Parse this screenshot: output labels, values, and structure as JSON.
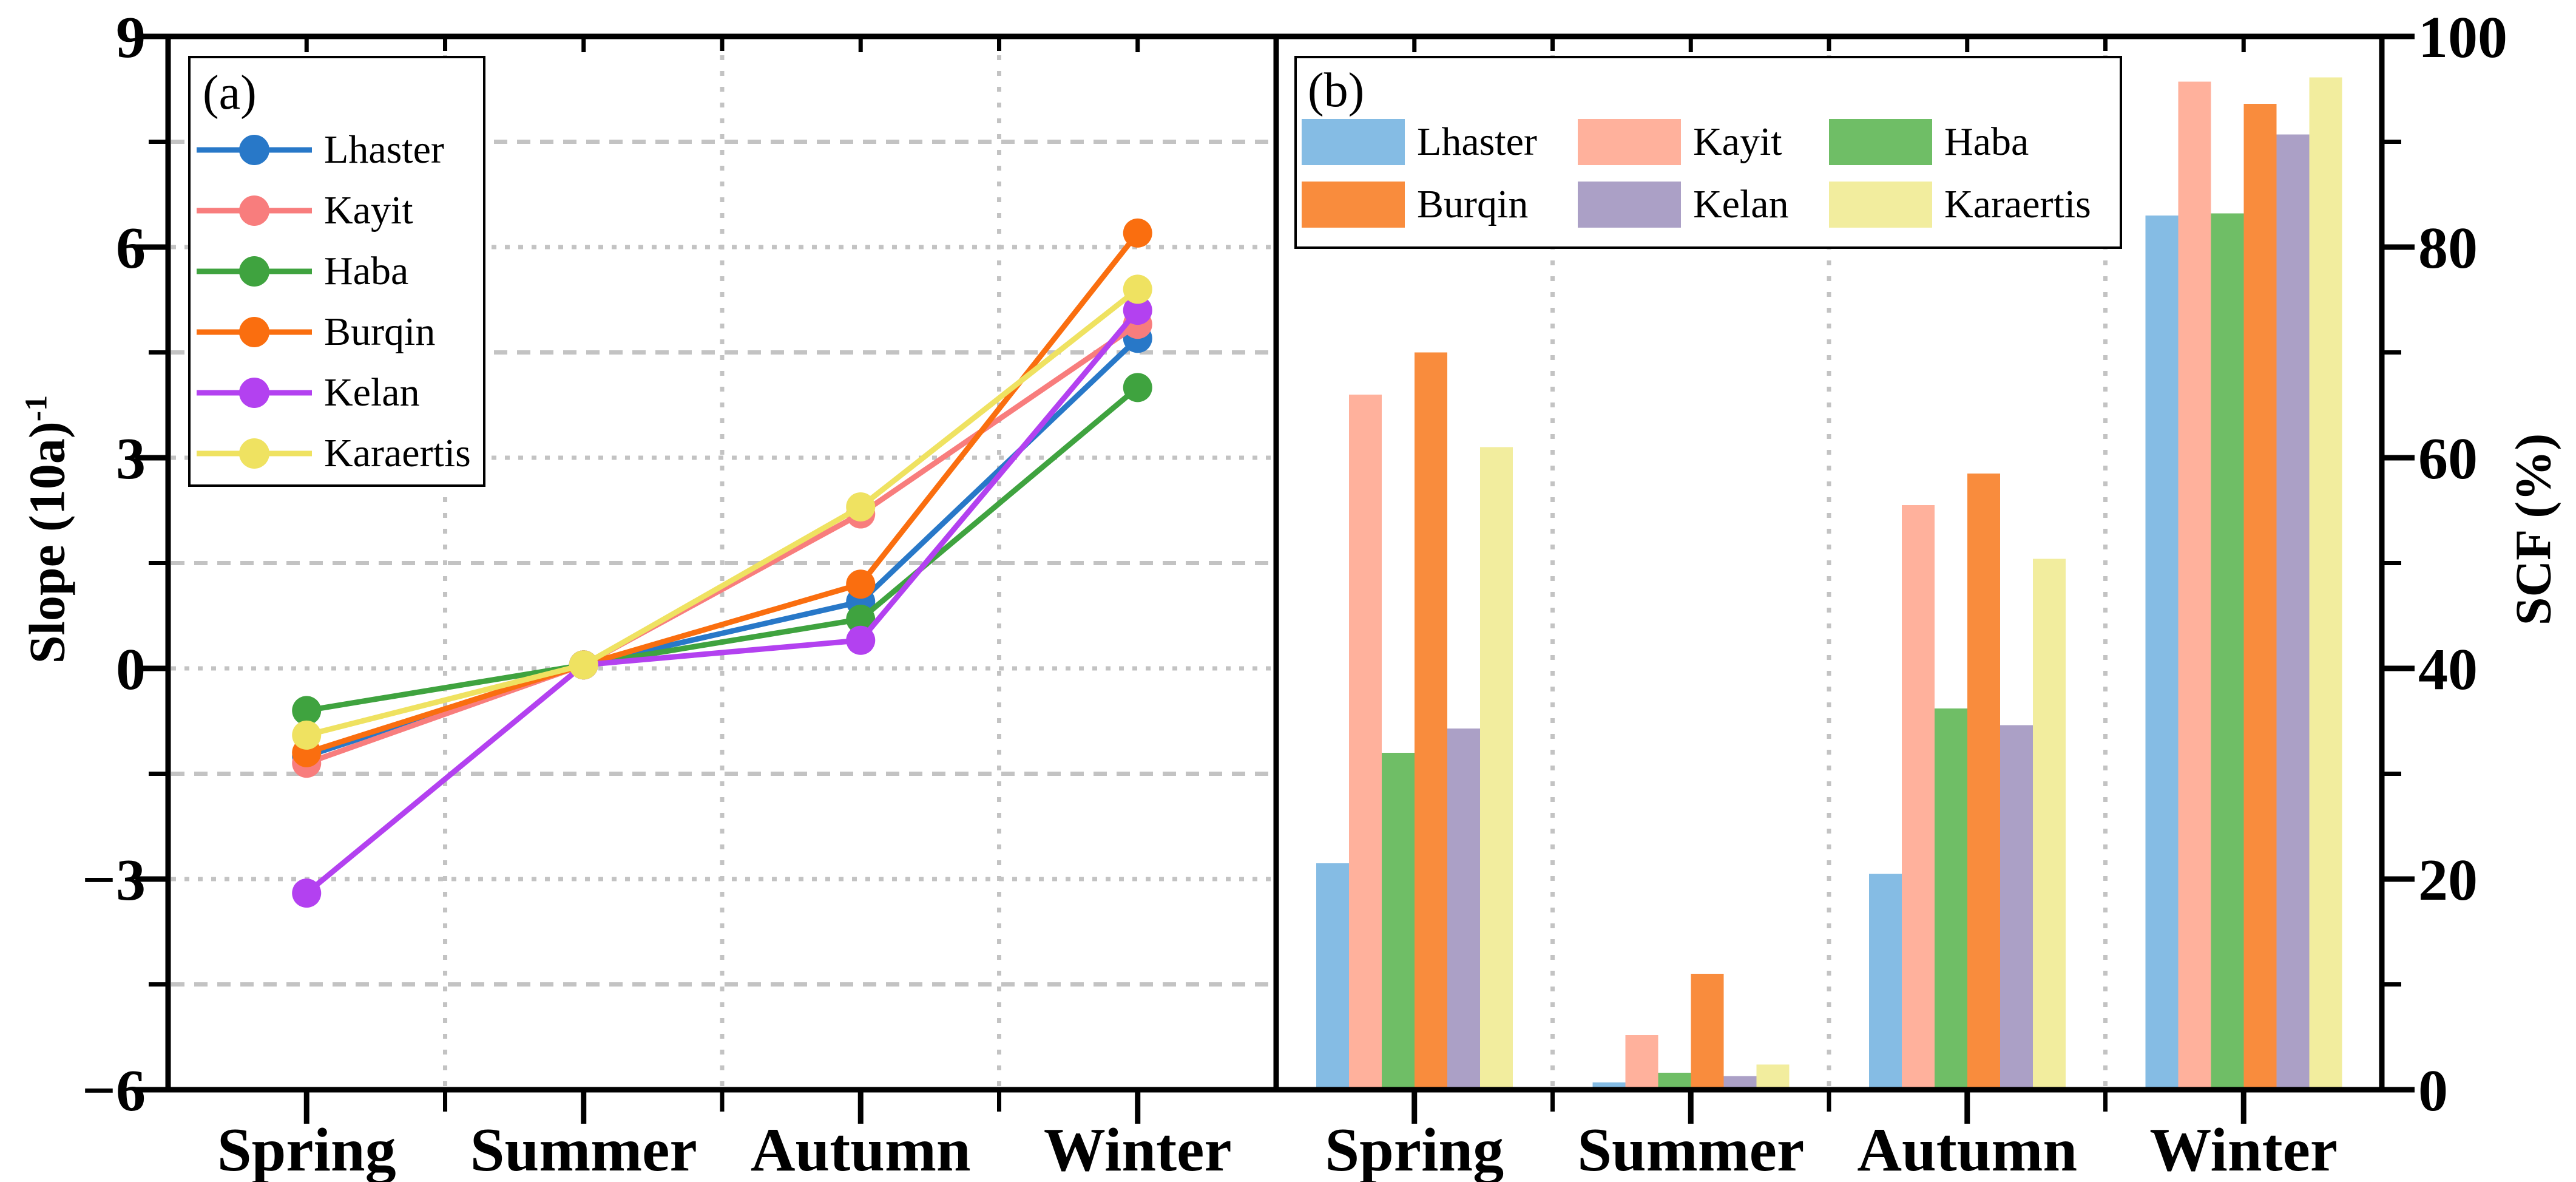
{
  "panels": [
    {
      "label": "(a)"
    },
    {
      "label": "(b)"
    }
  ],
  "axes": {
    "left": {
      "title_main": "Slope (10a)",
      "title_sup": "-1",
      "title_full": "Slope (10a)⁻¹"
    },
    "right": {
      "title": "SCF (%)"
    },
    "bottom_categories": [
      "Spring",
      "Summer",
      "Autumn",
      "Winter"
    ]
  },
  "chart_data": [
    {
      "type": "line",
      "panel": "(a)",
      "categories": [
        "Spring",
        "Summer",
        "Autumn",
        "Winter"
      ],
      "ylabel": "Slope (10a)⁻¹",
      "ylim": [
        -6,
        9
      ],
      "yticks": [
        9,
        6,
        3,
        0,
        -3,
        -6
      ],
      "ytick_minor_step": 1.5,
      "grid": {
        "h_major": "dotted",
        "h_minor": "dashed",
        "v_between_categories": "dotted",
        "color": "#c3c3c3"
      },
      "legend_position": "upper-left",
      "marker": "circle",
      "series": [
        {
          "name": "Lhaster",
          "color": "#2878C8",
          "values": [
            -1.25,
            0.05,
            0.95,
            4.7
          ]
        },
        {
          "name": "Kayit",
          "color": "#F87D7D",
          "values": [
            -1.35,
            0.05,
            2.2,
            4.9
          ]
        },
        {
          "name": "Haba",
          "color": "#3FA33F",
          "values": [
            -0.6,
            0.05,
            0.7,
            4.0
          ]
        },
        {
          "name": "Burqin",
          "color": "#FA6E0F",
          "values": [
            -1.2,
            0.05,
            1.2,
            6.2
          ]
        },
        {
          "name": "Kelan",
          "color": "#B341F0",
          "values": [
            -3.2,
            0.05,
            0.4,
            5.1
          ]
        },
        {
          "name": "Karaertis",
          "color": "#EFE261",
          "values": [
            -0.95,
            0.05,
            2.3,
            5.4
          ]
        }
      ]
    },
    {
      "type": "bar",
      "panel": "(b)",
      "categories": [
        "Spring",
        "Summer",
        "Autumn",
        "Winter"
      ],
      "ylabel": "SCF (%)",
      "ylim": [
        0,
        100
      ],
      "yticks": [
        100,
        80,
        60,
        40,
        20,
        0
      ],
      "ytick_minor_step": 10,
      "grid": {
        "v_between_categories": "dotted",
        "color": "#c3c3c3"
      },
      "legend_position": "top",
      "series": [
        {
          "name": "Lhaster",
          "color": "#85BCE4",
          "values": [
            21.5,
            0.7,
            20.5,
            83.0
          ]
        },
        {
          "name": "Kayit",
          "color": "#FFB19C",
          "values": [
            66.0,
            5.2,
            55.5,
            95.7
          ]
        },
        {
          "name": "Haba",
          "color": "#6FBE66",
          "values": [
            32.0,
            1.6,
            36.2,
            83.2
          ]
        },
        {
          "name": "Burqin",
          "color": "#F98C3D",
          "values": [
            70.0,
            11.0,
            58.5,
            93.6
          ]
        },
        {
          "name": "Kelan",
          "color": "#ABA0C6",
          "values": [
            34.3,
            1.3,
            34.6,
            90.7
          ]
        },
        {
          "name": "Karaertis",
          "color": "#F2ED9E",
          "values": [
            61.0,
            2.4,
            50.4,
            96.1
          ]
        }
      ]
    }
  ]
}
